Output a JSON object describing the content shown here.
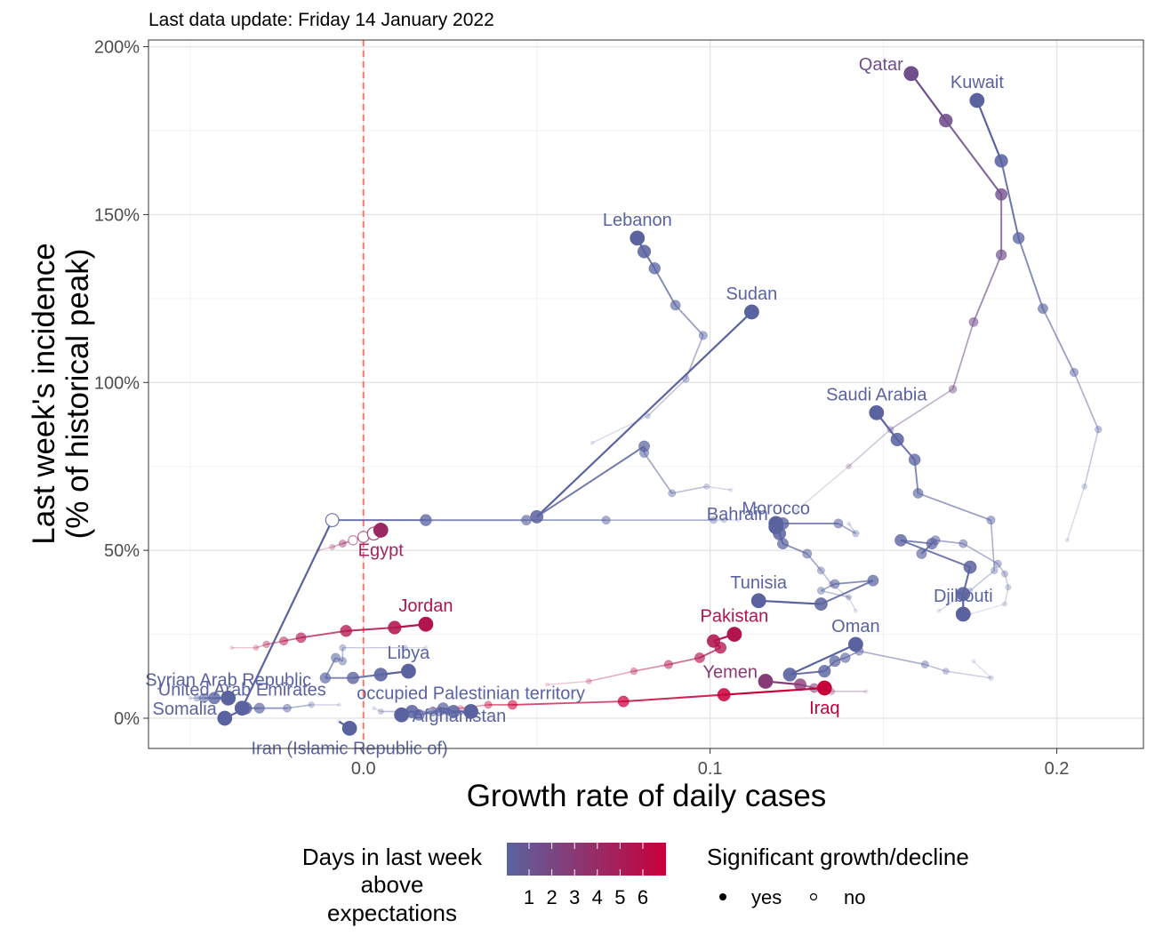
{
  "chart_data": {
    "type": "scatter",
    "subtitle": "Last data update: Friday 14 January 2022",
    "xlabel": "Growth rate of daily cases",
    "ylabel_line1": "Last week's incidence",
    "ylabel_line2": "(% of historical peak)",
    "xlim": [
      -0.062,
      0.225
    ],
    "ylim": [
      -9,
      202
    ],
    "x_ticks": [
      0.0,
      0.1,
      0.2
    ],
    "x_tick_labels": [
      "0.0",
      "0.1",
      "0.2"
    ],
    "y_ticks": [
      0,
      50,
      100,
      150,
      200
    ],
    "y_tick_labels": [
      "0%",
      "50%",
      "100%",
      "150%",
      "200%"
    ],
    "reference_line_x": 0,
    "grid": true,
    "legend": {
      "position": "bottom",
      "color_title_lines": [
        "Days in last week",
        "above",
        "expectations"
      ],
      "color_tick_labels": [
        "1",
        "2",
        "3",
        "4",
        "5",
        "6"
      ],
      "color_low": "#5a63a0",
      "color_high": "#c8003a",
      "shape_title": "Significant growth/decline",
      "shape_yes_label": "yes",
      "shape_no_label": "no"
    },
    "series": [
      {
        "name": "Qatar",
        "days": 2,
        "label_pos": "left",
        "points": [
          [
            0.125,
            62
          ],
          [
            0.14,
            75
          ],
          [
            0.152,
            86
          ],
          [
            0.17,
            98
          ],
          [
            0.176,
            118
          ],
          [
            0.184,
            138
          ],
          [
            0.184,
            156
          ],
          [
            0.168,
            178
          ],
          [
            0.158,
            192
          ]
        ],
        "sig": [
          1,
          1,
          1,
          1,
          1,
          1,
          1,
          1,
          1
        ]
      },
      {
        "name": "Kuwait",
        "days": 1,
        "label_pos": "above",
        "points": [
          [
            0.203,
            53
          ],
          [
            0.208,
            69
          ],
          [
            0.212,
            86
          ],
          [
            0.205,
            103
          ],
          [
            0.196,
            122
          ],
          [
            0.189,
            143
          ],
          [
            0.184,
            166
          ],
          [
            0.177,
            184
          ]
        ],
        "sig": [
          1,
          1,
          1,
          1,
          1,
          1,
          1,
          1
        ]
      },
      {
        "name": "Lebanon",
        "days": 1,
        "label_pos": "above",
        "points": [
          [
            0.066,
            82
          ],
          [
            0.082,
            90
          ],
          [
            0.093,
            101
          ],
          [
            0.098,
            114
          ],
          [
            0.09,
            123
          ],
          [
            0.084,
            134
          ],
          [
            0.081,
            139
          ],
          [
            0.079,
            143
          ]
        ],
        "sig": [
          1,
          1,
          1,
          1,
          1,
          1,
          1,
          1
        ]
      },
      {
        "name": "Sudan",
        "days": 1,
        "label_pos": "above",
        "points": [
          [
            0.106,
            68
          ],
          [
            0.099,
            69
          ],
          [
            0.089,
            67
          ],
          [
            0.081,
            79
          ],
          [
            0.081,
            81
          ],
          [
            0.05,
            60
          ],
          [
            0.112,
            121
          ]
        ],
        "sig": [
          1,
          1,
          1,
          1,
          1,
          1,
          1
        ]
      },
      {
        "name": "Saudi Arabia",
        "days": 1,
        "label_pos": "above",
        "points": [
          [
            0.166,
            32
          ],
          [
            0.175,
            38
          ],
          [
            0.182,
            44
          ],
          [
            0.181,
            59
          ],
          [
            0.16,
            67
          ],
          [
            0.159,
            77
          ],
          [
            0.154,
            83
          ],
          [
            0.148,
            91
          ]
        ],
        "sig": [
          1,
          1,
          1,
          1,
          1,
          1,
          1,
          1
        ]
      },
      {
        "name": "United Arab Emirates",
        "days": 1,
        "label_pos": "above",
        "points": [
          [
            0.108,
            59
          ],
          [
            0.104,
            59
          ],
          [
            0.101,
            59
          ],
          [
            0.07,
            59
          ],
          [
            0.047,
            59
          ],
          [
            0.018,
            59
          ],
          [
            -0.009,
            59
          ],
          [
            -0.035,
            3
          ]
        ],
        "sig": [
          1,
          1,
          1,
          1,
          1,
          1,
          0,
          1
        ]
      },
      {
        "name": "Egypt",
        "days": 4,
        "label_pos": "below",
        "points": [
          [
            -0.013,
            50
          ],
          [
            -0.009,
            51
          ],
          [
            -0.006,
            52
          ],
          [
            -0.003,
            53
          ],
          [
            0.0,
            54
          ],
          [
            0.003,
            55
          ],
          [
            0.005,
            56
          ]
        ],
        "sig": [
          1,
          1,
          1,
          0,
          0,
          0,
          1
        ]
      },
      {
        "name": "Morocco",
        "days": 1,
        "label_pos": "above",
        "points": [
          [
            0.14,
            58
          ],
          [
            0.142,
            55
          ],
          [
            0.137,
            58
          ],
          [
            0.121,
            58
          ],
          [
            0.119,
            57
          ]
        ],
        "sig": [
          1,
          1,
          1,
          1,
          1
        ]
      },
      {
        "name": "Bahrain",
        "days": 1,
        "label_pos": "left",
        "points": [
          [
            0.14,
            36
          ],
          [
            0.135,
            40
          ],
          [
            0.132,
            44
          ],
          [
            0.128,
            49
          ],
          [
            0.121,
            52
          ],
          [
            0.12,
            55
          ],
          [
            0.119,
            58
          ]
        ],
        "sig": [
          1,
          1,
          1,
          1,
          1,
          1,
          1
        ]
      },
      {
        "name": "Djibouti",
        "days": 1,
        "label_pos": "above",
        "points": [
          [
            0.175,
            31
          ],
          [
            0.185,
            34
          ],
          [
            0.186,
            39
          ],
          [
            0.185,
            43
          ],
          [
            0.183,
            46
          ],
          [
            0.173,
            52
          ],
          [
            0.165,
            53
          ],
          [
            0.161,
            49
          ],
          [
            0.164,
            52
          ],
          [
            0.155,
            53
          ],
          [
            0.175,
            45
          ],
          [
            0.173,
            37
          ],
          [
            0.173,
            31
          ]
        ],
        "sig": [
          1,
          1,
          1,
          1,
          1,
          1,
          1,
          1,
          1,
          1,
          1,
          1,
          1
        ]
      },
      {
        "name": "Tunisia",
        "days": 1,
        "label_pos": "above",
        "points": [
          [
            0.142,
            32
          ],
          [
            0.14,
            36
          ],
          [
            0.132,
            38
          ],
          [
            0.136,
            40
          ],
          [
            0.147,
            41
          ],
          [
            0.132,
            34
          ],
          [
            0.114,
            35
          ]
        ],
        "sig": [
          1,
          1,
          1,
          1,
          1,
          1,
          1
        ]
      },
      {
        "name": "Jordan",
        "days": 5,
        "label_pos": "above",
        "points": [
          [
            -0.038,
            21
          ],
          [
            -0.031,
            21
          ],
          [
            -0.028,
            22
          ],
          [
            -0.023,
            23
          ],
          [
            -0.018,
            24
          ],
          [
            -0.005,
            26
          ],
          [
            0.009,
            27
          ],
          [
            0.018,
            28
          ]
        ],
        "sig": [
          1,
          1,
          1,
          1,
          1,
          1,
          1,
          1
        ]
      },
      {
        "name": "Pakistan",
        "days": 5,
        "label_pos": "above",
        "points": [
          [
            0.053,
            10
          ],
          [
            0.065,
            11
          ],
          [
            0.078,
            14
          ],
          [
            0.088,
            16
          ],
          [
            0.097,
            18
          ],
          [
            0.103,
            21
          ],
          [
            0.101,
            23
          ],
          [
            0.107,
            25
          ]
        ],
        "sig": [
          1,
          1,
          1,
          1,
          1,
          1,
          1,
          1
        ]
      },
      {
        "name": "Oman",
        "days": 1,
        "label_pos": "above",
        "points": [
          [
            0.176,
            17
          ],
          [
            0.181,
            12
          ],
          [
            0.168,
            14
          ],
          [
            0.162,
            16
          ],
          [
            0.143,
            20
          ],
          [
            0.139,
            18
          ],
          [
            0.136,
            17
          ],
          [
            0.133,
            14
          ],
          [
            0.123,
            13
          ],
          [
            0.142,
            22
          ]
        ],
        "sig": [
          1,
          1,
          1,
          1,
          1,
          1,
          1,
          1,
          1,
          1
        ]
      },
      {
        "name": "Libya",
        "days": 1,
        "label_pos": "above",
        "points": [
          [
            0.018,
            21
          ],
          [
            0.012,
            21
          ],
          [
            -0.006,
            21
          ],
          [
            -0.006,
            17
          ],
          [
            -0.008,
            18
          ],
          [
            -0.011,
            12
          ],
          [
            -0.003,
            12
          ],
          [
            0.005,
            13
          ],
          [
            0.013,
            14
          ]
        ],
        "sig": [
          1,
          1,
          1,
          1,
          1,
          1,
          1,
          1,
          1
        ]
      },
      {
        "name": "Yemen",
        "days": 3,
        "label_pos": "left",
        "points": [
          [
            0.145,
            8
          ],
          [
            0.135,
            8
          ],
          [
            0.13,
            9
          ],
          [
            0.126,
            10
          ],
          [
            0.116,
            11
          ]
        ],
        "sig": [
          1,
          1,
          1,
          1,
          1
        ]
      },
      {
        "name": "Iraq",
        "days": 6,
        "label_pos": "below",
        "points": [
          [
            0.02,
            3
          ],
          [
            0.028,
            3
          ],
          [
            0.036,
            4
          ],
          [
            0.043,
            4
          ],
          [
            0.075,
            5
          ],
          [
            0.104,
            7
          ],
          [
            0.133,
            9
          ]
        ],
        "sig": [
          1,
          1,
          1,
          1,
          1,
          1,
          1
        ]
      },
      {
        "name": "Syrian Arab Republic",
        "days": 1,
        "label_pos": "above",
        "points": [
          [
            -0.05,
            6
          ],
          [
            -0.048,
            6
          ],
          [
            -0.046,
            6
          ],
          [
            -0.043,
            6
          ],
          [
            -0.039,
            6
          ]
        ],
        "sig": [
          1,
          1,
          1,
          1,
          1
        ]
      },
      {
        "name": "Somalia",
        "days": 1,
        "label_pos": "left",
        "points": [
          [
            -0.007,
            4
          ],
          [
            -0.015,
            4
          ],
          [
            -0.022,
            3
          ],
          [
            -0.03,
            3
          ],
          [
            -0.034,
            3
          ],
          [
            -0.04,
            0
          ]
        ],
        "sig": [
          1,
          1,
          1,
          1,
          1,
          1
        ]
      },
      {
        "name": "occupied Palestinian territory",
        "days": 1,
        "label_pos": "above",
        "points": [
          [
            0.003,
            3
          ],
          [
            0.005,
            2
          ],
          [
            0.011,
            2
          ],
          [
            0.02,
            2
          ],
          [
            0.023,
            3
          ],
          [
            0.026,
            2
          ],
          [
            0.031,
            2
          ]
        ],
        "sig": [
          1,
          1,
          1,
          1,
          1,
          1,
          1
        ]
      },
      {
        "name": "Afghanistan",
        "days": 1,
        "label_pos": "right",
        "points": [
          [
            0.031,
            2
          ],
          [
            0.03,
            2
          ],
          [
            0.024,
            2
          ],
          [
            0.022,
            2
          ],
          [
            0.016,
            1
          ],
          [
            0.014,
            2
          ],
          [
            0.011,
            1
          ]
        ],
        "sig": [
          1,
          1,
          1,
          1,
          1,
          1,
          1
        ]
      },
      {
        "name": "Iran (Islamic Republic of)",
        "days": 1,
        "label_pos": "below",
        "points": [
          [
            -0.007,
            -1
          ],
          [
            -0.004,
            -3
          ]
        ],
        "sig": [
          1,
          1
        ]
      }
    ]
  }
}
